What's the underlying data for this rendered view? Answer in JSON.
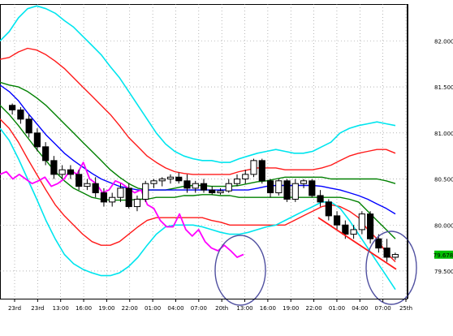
{
  "chart_data": {
    "type": "candlestick",
    "background": "#ffffff",
    "frame_color": "#000000",
    "grid": true,
    "grid_style": "dotted",
    "y_range": [
      79.2,
      82.4
    ],
    "y_ticks": [
      {
        "value": 82.0,
        "label": "82.000"
      },
      {
        "value": 81.5,
        "label": "81.500"
      },
      {
        "value": 81.0,
        "label": "81.000"
      },
      {
        "value": 80.5,
        "label": "80.500"
      },
      {
        "value": 80.0,
        "label": "80.000"
      },
      {
        "value": 79.5,
        "label": "79.500"
      }
    ],
    "x_ticks": [
      "23rd",
      "23rd",
      "13:00",
      "16:00",
      "19:00",
      "22:00",
      "01:00",
      "04:00",
      "07:00",
      "20th",
      "13:00",
      "16:00",
      "19:00",
      "22:00",
      "01:00",
      "04:00",
      "07:00",
      "25th"
    ],
    "current_price": {
      "label": "79.678",
      "value": 79.678,
      "color": "#00c000"
    },
    "candles": [
      [
        81.3,
        81.32,
        81.2,
        81.25
      ],
      [
        81.25,
        81.28,
        81.1,
        81.15
      ],
      [
        81.15,
        81.2,
        80.95,
        81.0
      ],
      [
        81.0,
        81.05,
        80.8,
        80.85
      ],
      [
        80.85,
        80.9,
        80.65,
        80.7
      ],
      [
        80.7,
        80.75,
        80.5,
        80.55
      ],
      [
        80.55,
        80.65,
        80.5,
        80.6
      ],
      [
        80.6,
        80.65,
        80.5,
        80.55
      ],
      [
        80.55,
        80.6,
        80.38,
        80.42
      ],
      [
        80.42,
        80.5,
        80.38,
        80.45
      ],
      [
        80.45,
        80.52,
        80.3,
        80.35
      ],
      [
        80.35,
        80.4,
        80.2,
        80.25
      ],
      [
        80.25,
        80.35,
        80.2,
        80.3
      ],
      [
        80.3,
        80.45,
        80.25,
        80.4
      ],
      [
        80.4,
        80.45,
        80.18,
        80.2
      ],
      [
        80.2,
        80.32,
        80.15,
        80.28
      ],
      [
        80.28,
        80.48,
        80.25,
        80.45
      ],
      [
        80.45,
        80.5,
        80.4,
        80.48
      ],
      [
        80.48,
        80.52,
        80.42,
        80.5
      ],
      [
        80.5,
        80.55,
        80.45,
        80.52
      ],
      [
        80.52,
        80.57,
        80.45,
        80.48
      ],
      [
        80.48,
        80.55,
        80.35,
        80.4
      ],
      [
        80.4,
        80.48,
        80.35,
        80.45
      ],
      [
        80.45,
        80.5,
        80.35,
        80.38
      ],
      [
        80.38,
        80.42,
        80.33,
        80.35
      ],
      [
        80.35,
        80.4,
        80.33,
        80.37
      ],
      [
        80.37,
        80.5,
        80.35,
        80.45
      ],
      [
        80.45,
        80.55,
        80.42,
        80.5
      ],
      [
        80.5,
        80.6,
        80.45,
        80.55
      ],
      [
        80.55,
        80.72,
        80.52,
        80.7
      ],
      [
        80.7,
        80.72,
        80.45,
        80.48
      ],
      [
        80.48,
        80.5,
        80.3,
        80.35
      ],
      [
        80.35,
        80.5,
        80.32,
        80.48
      ],
      [
        80.48,
        80.5,
        80.25,
        80.28
      ],
      [
        80.28,
        80.5,
        80.25,
        80.45
      ],
      [
        80.45,
        80.5,
        80.4,
        80.48
      ],
      [
        80.48,
        80.5,
        80.3,
        80.32
      ],
      [
        80.32,
        80.38,
        80.2,
        80.25
      ],
      [
        80.25,
        80.28,
        80.05,
        80.1
      ],
      [
        80.1,
        80.15,
        79.95,
        80.0
      ],
      [
        80.0,
        80.05,
        79.85,
        79.9
      ],
      [
        79.9,
        80.0,
        79.85,
        79.95
      ],
      [
        79.95,
        80.15,
        79.9,
        80.12
      ],
      [
        80.12,
        80.15,
        79.8,
        79.85
      ],
      [
        79.85,
        79.9,
        79.7,
        79.75
      ],
      [
        79.75,
        79.85,
        79.6,
        79.65
      ],
      [
        79.65,
        79.7,
        79.62,
        79.68
      ]
    ],
    "series": [
      {
        "color": "#00e5ee",
        "width": 1.6,
        "values": [
          82.0,
          82.1,
          82.25,
          82.35,
          82.38,
          82.35,
          82.3,
          82.22,
          82.15,
          82.05,
          81.95,
          81.85,
          81.72,
          81.6,
          81.45,
          81.3,
          81.15,
          81.0,
          80.88,
          80.8,
          80.75,
          80.72,
          80.7,
          80.7,
          80.68,
          80.68,
          80.72,
          80.75,
          80.78,
          80.8,
          80.82,
          80.8,
          80.78,
          80.78,
          80.8,
          80.85,
          80.9,
          81.0,
          81.05,
          81.08,
          81.1,
          81.12,
          81.1,
          81.08
        ]
      },
      {
        "color": "#ff1a1a",
        "width": 1.4,
        "values": [
          81.8,
          81.82,
          81.88,
          81.92,
          81.9,
          81.85,
          81.78,
          81.7,
          81.6,
          81.5,
          81.4,
          81.3,
          81.2,
          81.08,
          80.95,
          80.85,
          80.75,
          80.68,
          80.62,
          80.58,
          80.56,
          80.55,
          80.55,
          80.55,
          80.55,
          80.55,
          80.58,
          80.6,
          80.62,
          80.62,
          80.62,
          80.6,
          80.6,
          80.6,
          80.6,
          80.62,
          80.65,
          80.7,
          80.75,
          80.78,
          80.8,
          80.82,
          80.82,
          80.78
        ]
      },
      {
        "color": "#008000",
        "width": 1.4,
        "values": [
          81.55,
          81.52,
          81.5,
          81.45,
          81.38,
          81.3,
          81.2,
          81.1,
          81.0,
          80.9,
          80.8,
          80.7,
          80.6,
          80.52,
          80.45,
          80.4,
          80.38,
          80.38,
          80.38,
          80.4,
          80.42,
          80.43,
          80.43,
          80.42,
          80.42,
          80.42,
          80.43,
          80.45,
          80.47,
          80.48,
          80.5,
          80.52,
          80.52,
          80.52,
          80.52,
          80.52,
          80.5,
          80.5,
          80.5,
          80.5,
          80.5,
          80.5,
          80.48,
          80.45
        ]
      },
      {
        "color": "#0000ff",
        "width": 1.4,
        "values": [
          81.52,
          81.45,
          81.35,
          81.22,
          81.1,
          80.98,
          80.88,
          80.78,
          80.7,
          80.63,
          80.56,
          80.5,
          80.46,
          80.42,
          80.4,
          80.38,
          80.38,
          80.38,
          80.38,
          80.38,
          80.38,
          80.38,
          80.38,
          80.38,
          80.38,
          80.38,
          80.38,
          80.38,
          80.4,
          80.42,
          80.43,
          80.43,
          80.43,
          80.43,
          80.43,
          80.42,
          80.4,
          80.38,
          80.35,
          80.32,
          80.28,
          80.23,
          80.18,
          80.12
        ]
      },
      {
        "color": "#008000",
        "width": 1.4,
        "values": [
          81.3,
          81.2,
          81.08,
          80.95,
          80.82,
          80.7,
          80.58,
          80.48,
          80.4,
          80.35,
          80.3,
          80.28,
          80.27,
          80.27,
          80.27,
          80.28,
          80.28,
          80.3,
          80.3,
          80.3,
          80.32,
          80.32,
          80.33,
          80.33,
          80.32,
          80.32,
          80.3,
          80.3,
          80.3,
          80.3,
          80.3,
          80.3,
          80.3,
          80.3,
          80.3,
          80.3,
          80.3,
          80.3,
          80.28,
          80.25,
          80.15,
          80.05,
          79.95,
          79.85
        ]
      },
      {
        "color": "#ff1a1a",
        "width": 1.4,
        "values": [
          81.15,
          81.05,
          80.9,
          80.72,
          80.55,
          80.38,
          80.22,
          80.1,
          80.0,
          79.9,
          79.82,
          79.78,
          79.78,
          79.82,
          79.9,
          79.98,
          80.05,
          80.08,
          80.08,
          80.08,
          80.08,
          80.08,
          80.08,
          80.05,
          80.03,
          80.0,
          80.0,
          80.0,
          80.0,
          80.0,
          80.0,
          80.0,
          80.05,
          80.1,
          80.15,
          80.2,
          80.22,
          80.2,
          80.15,
          80.08,
          79.95,
          79.85,
          79.7,
          79.6
        ]
      },
      {
        "color": "#00e5ee",
        "width": 1.6,
        "values": [
          81.05,
          80.92,
          80.72,
          80.5,
          80.28,
          80.05,
          79.85,
          79.68,
          79.58,
          79.52,
          79.48,
          79.45,
          79.45,
          79.48,
          79.55,
          79.65,
          79.78,
          79.9,
          79.98,
          80.0,
          80.0,
          80.0,
          79.98,
          79.95,
          79.92,
          79.9,
          79.9,
          79.92,
          79.95,
          79.98,
          80.0,
          80.05,
          80.1,
          80.15,
          80.2,
          80.25,
          80.25,
          80.18,
          80.05,
          79.9,
          79.75,
          79.6,
          79.45,
          79.3
        ]
      },
      {
        "color": "#ff00ff",
        "width": 1.8,
        "values": [
          80.55,
          80.58,
          80.5,
          80.55,
          80.5,
          80.45,
          80.48,
          80.52,
          80.42,
          80.45,
          80.5,
          80.6,
          80.55,
          80.68,
          80.5,
          80.45,
          80.35,
          80.38,
          80.48,
          80.45,
          80.4,
          80.35,
          80.38,
          80.22,
          80.18,
          80.05,
          79.98,
          79.98,
          80.12,
          79.95,
          79.88,
          79.95,
          79.82,
          79.75,
          79.72,
          79.78,
          79.72,
          79.65,
          79.68
        ]
      }
    ],
    "annotations": [
      {
        "type": "ellipse",
        "color": "#5050a0",
        "label": ""
      },
      {
        "type": "ellipse",
        "color": "#5050a0",
        "label": ""
      }
    ]
  }
}
